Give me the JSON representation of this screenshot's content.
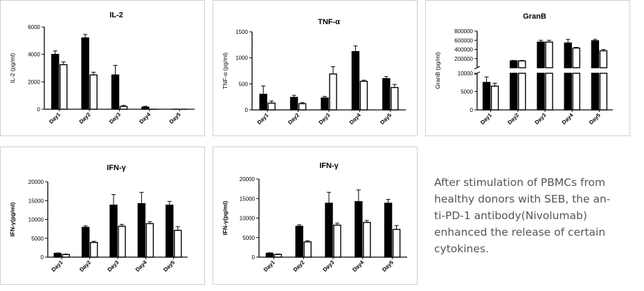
{
  "caption": {
    "lines": [
      "After stimulation of PBMCs from",
      "healthy donors with SEB, the an-",
      "ti-PD-1 antibody(Nivolumab)",
      "enhanced the release of certain",
      "cytokines."
    ]
  },
  "colors": {
    "series_1": "#000000",
    "series_2": "#ffffff",
    "axis": "#000000",
    "caption": "#555555"
  },
  "chart_data": [
    {
      "id": "il2",
      "type": "bar",
      "title": "IL-2",
      "ylabel": "IL-2 (pg/ml)",
      "xlabel": "",
      "categories": [
        "Day1",
        "Day2",
        "Day3",
        "Day4",
        "Day5"
      ],
      "ylim": [
        0,
        6000
      ],
      "yticks": [
        0,
        2000,
        4000,
        6000
      ],
      "ytick_labels": [
        "0",
        "2000",
        "4000",
        "6000"
      ],
      "series": [
        {
          "values": [
            4000,
            5200,
            2500,
            150,
            0
          ],
          "errors": [
            250,
            250,
            700,
            60,
            0
          ],
          "fill": "#000000"
        },
        {
          "values": [
            3250,
            2500,
            200,
            0,
            0
          ],
          "errors": [
            200,
            200,
            80,
            0,
            0
          ],
          "fill": "#ffffff"
        }
      ]
    },
    {
      "id": "tnf",
      "type": "bar",
      "title": "TNF-α",
      "ylabel": "TNF-α (pg/ml)",
      "xlabel": "",
      "categories": [
        "Day1",
        "Day2",
        "Day3",
        "Day4",
        "Day5"
      ],
      "ylim": [
        0,
        1500
      ],
      "yticks": [
        0,
        500,
        1000,
        1500
      ],
      "ytick_labels": [
        "0",
        "500",
        "1000",
        "1500"
      ],
      "series": [
        {
          "values": [
            300,
            240,
            230,
            1120,
            600
          ],
          "errors": [
            160,
            40,
            30,
            110,
            40
          ],
          "fill": "#000000"
        },
        {
          "values": [
            130,
            120,
            690,
            550,
            430
          ],
          "errors": [
            40,
            20,
            140,
            20,
            60
          ],
          "fill": "#ffffff"
        }
      ]
    },
    {
      "id": "granb",
      "type": "bar",
      "title": "GranB",
      "ylabel": "GranB (pg/ml)",
      "xlabel": "",
      "broken_axis": true,
      "categories": [
        "Day1",
        "Day2",
        "Day3",
        "Day4",
        "Day5"
      ],
      "ylim_lower": [
        0,
        10000
      ],
      "ylim_upper": [
        0,
        800000
      ],
      "yticks_lower": [
        0,
        5000,
        10000
      ],
      "ytick_labels_lower": [
        "0",
        "5000",
        "10000"
      ],
      "yticks_upper": [
        200000,
        400000,
        600000,
        800000
      ],
      "ytick_labels_upper": [
        "200000",
        "400000",
        "600000",
        "800000"
      ],
      "series": [
        {
          "values": [
            7500,
            150000,
            560000,
            540000,
            590000
          ],
          "errors": [
            1500,
            10000,
            40000,
            80000,
            30000
          ],
          "fill": "#000000"
        },
        {
          "values": [
            6500,
            150000,
            560000,
            430000,
            370000
          ],
          "errors": [
            800,
            10000,
            40000,
            15000,
            30000
          ],
          "fill": "#ffffff"
        }
      ]
    },
    {
      "id": "ifn1",
      "type": "bar",
      "title": "IFN-γ",
      "ylabel": "IFN-γ(pg/ml)",
      "xlabel": "",
      "categories": [
        "Day1",
        "Day2",
        "Day3",
        "Day4",
        "Day5"
      ],
      "ylim": [
        0,
        20000
      ],
      "yticks": [
        0,
        5000,
        10000,
        15000,
        20000
      ],
      "ytick_labels": [
        "0",
        "5000",
        "10000",
        "15000",
        "20000"
      ],
      "series": [
        {
          "values": [
            1000,
            7900,
            13800,
            14200,
            13800
          ],
          "errors": [
            100,
            400,
            2800,
            3000,
            1000
          ],
          "fill": "#000000"
        },
        {
          "values": [
            700,
            3900,
            8200,
            8900,
            7100
          ],
          "errors": [
            100,
            300,
            500,
            500,
            1000
          ],
          "fill": "#ffffff"
        }
      ]
    },
    {
      "id": "ifn2",
      "type": "bar",
      "title": "IFN-γ",
      "ylabel": "IFN-γ(pg/ml)",
      "xlabel": "",
      "categories": [
        "Day1",
        "Day2",
        "Day3",
        "Day4",
        "Day5"
      ],
      "ylim": [
        0,
        20000
      ],
      "yticks": [
        0,
        5000,
        10000,
        15000,
        20000
      ],
      "ytick_labels": [
        "0",
        "5000",
        "10000",
        "15000",
        "20000"
      ],
      "series": [
        {
          "values": [
            1000,
            7900,
            13800,
            14200,
            13800
          ],
          "errors": [
            100,
            400,
            2800,
            3000,
            1000
          ],
          "fill": "#000000"
        },
        {
          "values": [
            700,
            3900,
            8200,
            8900,
            7100
          ],
          "errors": [
            100,
            300,
            500,
            500,
            1000
          ],
          "fill": "#ffffff"
        }
      ]
    }
  ]
}
